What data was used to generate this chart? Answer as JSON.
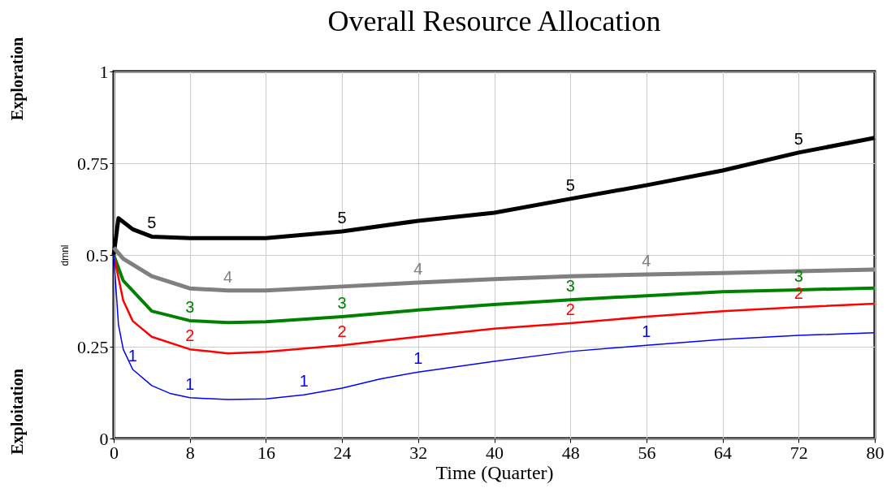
{
  "chart_data": {
    "type": "line",
    "title": "Overall Resource Allocation",
    "xlabel": "Time (Quarter)",
    "ylabel": "dmnl",
    "annotations": [
      "Exploration",
      "Exploitation"
    ],
    "xlim": [
      0,
      80
    ],
    "xticks": [
      0,
      8,
      16,
      24,
      32,
      40,
      48,
      56,
      64,
      72,
      80
    ],
    "ylim": [
      0,
      1
    ],
    "yticks": [
      0,
      0.25,
      0.5,
      0.75,
      1
    ],
    "grid": true,
    "series": [
      {
        "name": "5",
        "color": "#000000",
        "x": [
          0,
          0.5,
          2,
          4,
          8,
          16,
          24,
          32,
          40,
          48,
          56,
          64,
          72,
          80
        ],
        "values": [
          0.5,
          0.6,
          0.57,
          0.55,
          0.546,
          0.546,
          0.564,
          0.593,
          0.615,
          0.653,
          0.69,
          0.73,
          0.779,
          0.819
        ]
      },
      {
        "name": "4",
        "color": "#808080",
        "x": [
          0,
          1,
          4,
          8,
          12,
          16,
          24,
          32,
          40,
          48,
          56,
          64,
          72,
          80
        ],
        "values": [
          0.52,
          0.49,
          0.442,
          0.409,
          0.403,
          0.403,
          0.414,
          0.425,
          0.434,
          0.442,
          0.447,
          0.451,
          0.456,
          0.46
        ]
      },
      {
        "name": "3",
        "color": "#008000",
        "x": [
          0,
          1,
          4,
          8,
          12,
          16,
          24,
          32,
          40,
          48,
          56,
          64,
          72,
          80
        ],
        "values": [
          0.5,
          0.43,
          0.347,
          0.321,
          0.316,
          0.318,
          0.332,
          0.35,
          0.365,
          0.378,
          0.389,
          0.4,
          0.405,
          0.41
        ]
      },
      {
        "name": "2",
        "color": "#ff0000",
        "x": [
          0,
          1,
          2,
          4,
          8,
          12,
          16,
          24,
          32,
          40,
          48,
          56,
          64,
          72,
          80
        ],
        "values": [
          0.5,
          0.376,
          0.32,
          0.277,
          0.243,
          0.232,
          0.236,
          0.254,
          0.277,
          0.299,
          0.314,
          0.332,
          0.347,
          0.358,
          0.367
        ]
      },
      {
        "name": "1",
        "color": "#0000ff",
        "x": [
          0,
          0.5,
          1,
          2,
          4,
          6,
          8,
          12,
          16,
          20,
          24,
          28,
          32,
          40,
          48,
          56,
          64,
          72,
          80
        ],
        "values": [
          0.5,
          0.31,
          0.243,
          0.188,
          0.144,
          0.122,
          0.111,
          0.106,
          0.108,
          0.119,
          0.137,
          0.162,
          0.181,
          0.21,
          0.237,
          0.254,
          0.27,
          0.281,
          0.288
        ]
      }
    ]
  }
}
